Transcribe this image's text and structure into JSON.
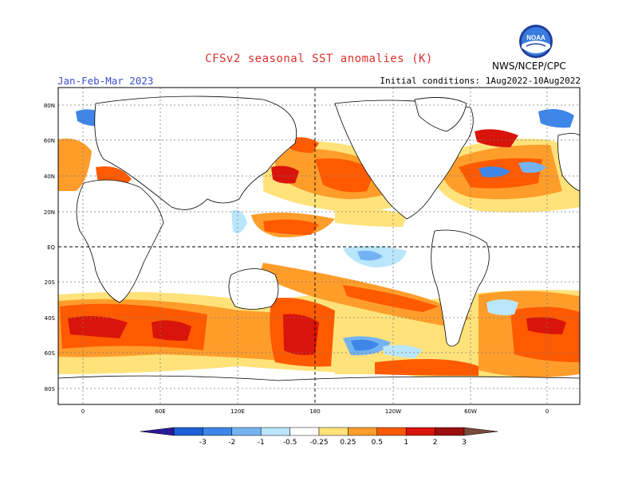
{
  "title": "CFSv2 seasonal SST anomalies (K)",
  "season": "Jan-Feb-Mar 2023",
  "initial_conditions": "Initial conditions: 1Aug2022-10Aug2022",
  "agency": "NWS/NCEP/CPC",
  "logo_text": "NOAA",
  "lat_labels": [
    "80N",
    "60N",
    "40N",
    "20N",
    "EQ",
    "20S",
    "40S",
    "60S",
    "80S"
  ],
  "lon_labels": [
    "0",
    "60E",
    "120E",
    "180",
    "120W",
    "60W",
    "0"
  ],
  "colorbar": {
    "labels": [
      "-3",
      "-2",
      "-1",
      "-0.5",
      "-0.25",
      "0.25",
      "0.5",
      "1",
      "2",
      "3"
    ],
    "colors": [
      "#2a1a99",
      "#1c5fd6",
      "#3e86e8",
      "#73b3f2",
      "#b9e6fb",
      "#ffffff",
      "#ffe27a",
      "#ff9d2b",
      "#ff5a00",
      "#d9140a",
      "#9c0f0f",
      "#7a4a3a"
    ]
  },
  "colors": {
    "land_bg": "#ffffff",
    "grid": "#7a7a7a",
    "title": "#d9302c",
    "season": "#3a4fd0"
  }
}
